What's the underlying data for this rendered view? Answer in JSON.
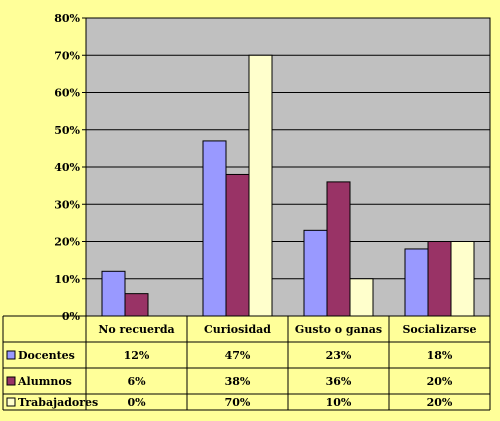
{
  "chart_data": {
    "type": "bar",
    "categories": [
      "No recuerda",
      "Curiosidad",
      "Gusto o ganas",
      "Socializarse"
    ],
    "series": [
      {
        "name": "Docentes",
        "color": "#9999FF",
        "values": [
          12,
          47,
          23,
          18
        ],
        "labels": [
          "12%",
          "47%",
          "23%",
          "18%"
        ]
      },
      {
        "name": "Alumnos",
        "color": "#993366",
        "values": [
          6,
          38,
          36,
          20
        ],
        "labels": [
          "6%",
          "38%",
          "36%",
          "20%"
        ]
      },
      {
        "name": "Trabajadores",
        "color": "#FFFFCC",
        "values": [
          0,
          70,
          10,
          20
        ],
        "labels": [
          "0%",
          "70%",
          "10%",
          "20%"
        ]
      }
    ],
    "ylim": [
      0,
      80
    ],
    "y_ticks": [
      "0%",
      "10%",
      "20%",
      "30%",
      "40%",
      "50%",
      "60%",
      "70%",
      "80%"
    ],
    "plot_background": "#C0C0C0",
    "grid": true,
    "legend": "data-table-below"
  }
}
